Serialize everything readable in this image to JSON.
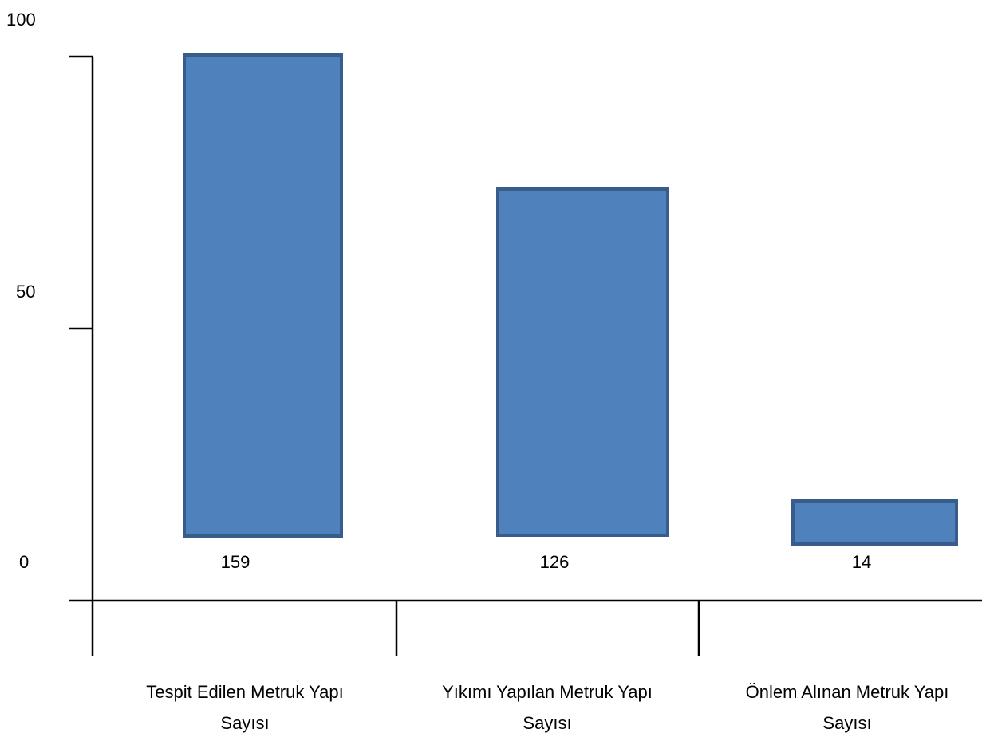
{
  "chart_data": {
    "type": "bar",
    "title": "",
    "xlabel": "",
    "ylabel": "",
    "categories": [
      [
        "Tespit Edilen Metruk Yapı",
        "Sayısı"
      ],
      [
        "Yıkımı Yapılan Metruk Yapı",
        "Sayısı"
      ],
      [
        "Önlem Alınan Metruk Yapı",
        "Sayısı"
      ]
    ],
    "values": [
      159,
      126,
      14
    ],
    "data_labels": [
      "159",
      "126",
      "14"
    ],
    "y_ticks": [
      {
        "value": 0,
        "label": "0"
      },
      {
        "value": 50,
        "label": "50"
      },
      {
        "value": 100,
        "label": "100"
      }
    ],
    "ylim": [
      0,
      100
    ],
    "grid": false,
    "legend": "none",
    "bar_color": "#4F81BD",
    "bar_edge_color": "#385D8A",
    "axis_color": "#000000"
  }
}
